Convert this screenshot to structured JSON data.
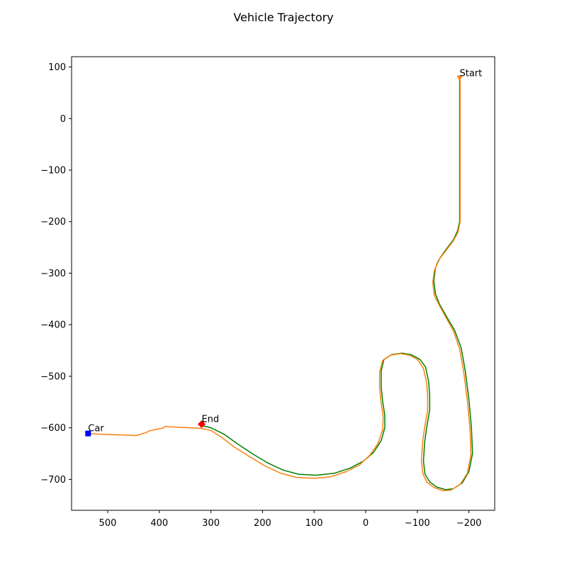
{
  "chart_data": {
    "type": "line",
    "title": "Vehicle Trajectory",
    "xlabel": "",
    "ylabel": "",
    "xlim": [
      570,
      -250
    ],
    "ylim": [
      -760,
      120
    ],
    "x_inverted": true,
    "grid": false,
    "xticks": [
      500,
      400,
      300,
      200,
      100,
      0,
      -100,
      -200
    ],
    "xtick_labels": [
      "500",
      "400",
      "300",
      "200",
      "100",
      "0",
      "−100",
      "−200"
    ],
    "yticks": [
      100,
      0,
      -100,
      -200,
      -300,
      -400,
      -500,
      -600,
      -700
    ],
    "ytick_labels": [
      "100",
      "0",
      "−100",
      "−200",
      "−300",
      "−400",
      "−500",
      "−600",
      "−700"
    ],
    "series": [
      {
        "color": "#008000",
        "points": [
          [
            -182,
            78
          ],
          [
            -182,
            40
          ],
          [
            -182,
            0
          ],
          [
            -182,
            -50
          ],
          [
            -182,
            -100
          ],
          [
            -182,
            -150
          ],
          [
            -182,
            -200
          ],
          [
            -178,
            -218
          ],
          [
            -170,
            -235
          ],
          [
            -155,
            -255
          ],
          [
            -143,
            -272
          ],
          [
            -135,
            -290
          ],
          [
            -132,
            -315
          ],
          [
            -135,
            -340
          ],
          [
            -143,
            -360
          ],
          [
            -157,
            -385
          ],
          [
            -172,
            -410
          ],
          [
            -185,
            -445
          ],
          [
            -193,
            -490
          ],
          [
            -200,
            -545
          ],
          [
            -205,
            -600
          ],
          [
            -207,
            -650
          ],
          [
            -200,
            -685
          ],
          [
            -187,
            -707
          ],
          [
            -170,
            -718
          ],
          [
            -155,
            -720
          ],
          [
            -138,
            -715
          ],
          [
            -124,
            -705
          ],
          [
            -115,
            -690
          ],
          [
            -112,
            -665
          ],
          [
            -114,
            -630
          ],
          [
            -118,
            -600
          ],
          [
            -124,
            -565
          ],
          [
            -124,
            -540
          ],
          [
            -122,
            -510
          ],
          [
            -116,
            -482
          ],
          [
            -105,
            -467
          ],
          [
            -88,
            -458
          ],
          [
            -70,
            -455
          ],
          [
            -50,
            -458
          ],
          [
            -35,
            -468
          ],
          [
            -30,
            -490
          ],
          [
            -30,
            -520
          ],
          [
            -33,
            -550
          ],
          [
            -37,
            -575
          ],
          [
            -37,
            -600
          ],
          [
            -30,
            -625
          ],
          [
            -15,
            -648
          ],
          [
            5,
            -665
          ],
          [
            30,
            -678
          ],
          [
            60,
            -688
          ],
          [
            95,
            -692
          ],
          [
            130,
            -690
          ],
          [
            160,
            -682
          ],
          [
            190,
            -668
          ],
          [
            220,
            -650
          ],
          [
            250,
            -630
          ],
          [
            275,
            -612
          ],
          [
            300,
            -600
          ],
          [
            320,
            -595
          ]
        ]
      },
      {
        "color": "#ff7f0e",
        "points": [
          [
            -183,
            78
          ],
          [
            -183,
            40
          ],
          [
            -183,
            0
          ],
          [
            -183,
            -50
          ],
          [
            -183,
            -100
          ],
          [
            -183,
            -150
          ],
          [
            -183,
            -200
          ],
          [
            -179,
            -220
          ],
          [
            -170,
            -237
          ],
          [
            -155,
            -257
          ],
          [
            -141,
            -275
          ],
          [
            -133,
            -295
          ],
          [
            -130,
            -318
          ],
          [
            -133,
            -343
          ],
          [
            -143,
            -363
          ],
          [
            -156,
            -387
          ],
          [
            -170,
            -412
          ],
          [
            -182,
            -447
          ],
          [
            -190,
            -492
          ],
          [
            -197,
            -547
          ],
          [
            -202,
            -602
          ],
          [
            -204,
            -652
          ],
          [
            -197,
            -688
          ],
          [
            -183,
            -710
          ],
          [
            -165,
            -721
          ],
          [
            -150,
            -722
          ],
          [
            -133,
            -716
          ],
          [
            -119,
            -706
          ],
          [
            -111,
            -690
          ],
          [
            -108,
            -665
          ],
          [
            -110,
            -630
          ],
          [
            -114,
            -600
          ],
          [
            -120,
            -565
          ],
          [
            -120,
            -540
          ],
          [
            -118,
            -512
          ],
          [
            -112,
            -485
          ],
          [
            -101,
            -468
          ],
          [
            -85,
            -459
          ],
          [
            -68,
            -456
          ],
          [
            -48,
            -459
          ],
          [
            -33,
            -469
          ],
          [
            -27,
            -492
          ],
          [
            -27,
            -522
          ],
          [
            -30,
            -552
          ],
          [
            -34,
            -578
          ],
          [
            -33,
            -603
          ],
          [
            -24,
            -630
          ],
          [
            -8,
            -653
          ],
          [
            12,
            -672
          ],
          [
            38,
            -685
          ],
          [
            68,
            -695
          ],
          [
            100,
            -698
          ],
          [
            135,
            -696
          ],
          [
            165,
            -688
          ],
          [
            195,
            -674
          ],
          [
            225,
            -656
          ],
          [
            255,
            -637
          ],
          [
            280,
            -618
          ],
          [
            300,
            -605
          ],
          [
            320,
            -601
          ],
          [
            340,
            -600
          ],
          [
            360,
            -599
          ],
          [
            380,
            -598
          ],
          [
            388,
            -597
          ],
          [
            392,
            -600
          ],
          [
            400,
            -602
          ],
          [
            410,
            -604
          ],
          [
            415,
            -605
          ],
          [
            420,
            -606
          ],
          [
            425,
            -609
          ],
          [
            432,
            -611
          ],
          [
            440,
            -614
          ],
          [
            448,
            -615
          ],
          [
            470,
            -614
          ],
          [
            500,
            -613
          ],
          [
            520,
            -612
          ],
          [
            540,
            -611
          ]
        ]
      }
    ],
    "markers": [
      {
        "label": "Start",
        "x": -182,
        "y": 78,
        "shape": "triangle-down",
        "color": "#ff7f0e"
      },
      {
        "label": "End",
        "x": 318,
        "y": -593,
        "shape": "diamond",
        "color": "#ff0000"
      },
      {
        "label": "Car",
        "x": 538,
        "y": -611,
        "shape": "square",
        "color": "#0000ff"
      }
    ]
  }
}
